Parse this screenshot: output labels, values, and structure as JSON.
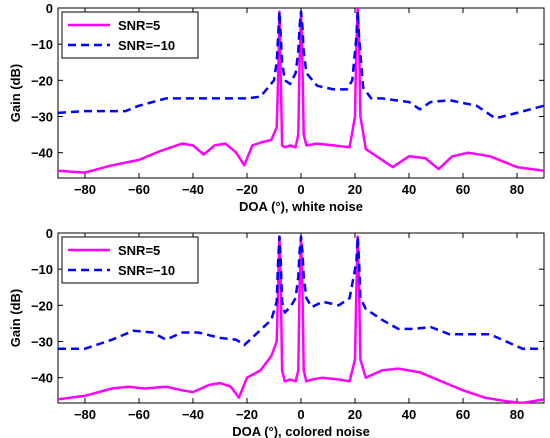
{
  "chart_data": [
    {
      "type": "line",
      "xlabel": "DOA (°), white noise",
      "ylabel": "Gain (dB)",
      "xlim": [
        -90,
        90
      ],
      "ylim": [
        -47,
        0
      ],
      "xticks": [
        -80,
        -60,
        -40,
        -20,
        0,
        20,
        40,
        60,
        80
      ],
      "yticks": [
        0,
        -10,
        -20,
        -30,
        -40
      ],
      "legend_position": "top-left",
      "series": [
        {
          "name": "SNR=5",
          "color": "#ff00ff",
          "style": "solid",
          "x": [
            -90,
            -80,
            -70,
            -60,
            -52,
            -44,
            -40,
            -36,
            -32,
            -28,
            -24,
            -21,
            -18,
            -14,
            -11,
            -9,
            -8.5,
            -8,
            -7.5,
            -7,
            -6,
            -4,
            -2,
            -1,
            -0.5,
            0,
            0.5,
            1,
            2,
            6,
            12,
            18,
            20,
            20.5,
            21,
            21.5,
            22,
            24,
            28,
            34,
            40,
            46,
            51,
            56,
            62,
            70,
            80,
            90
          ],
          "y": [
            -45,
            -45.5,
            -43.5,
            -42,
            -39.5,
            -37.5,
            -38,
            -40.5,
            -38,
            -37.5,
            -40,
            -43.5,
            -38,
            -37,
            -36.5,
            -33,
            -20,
            -1,
            -20,
            -38,
            -38.5,
            -38,
            -38.5,
            -35,
            -15,
            -1,
            -15,
            -35,
            -38,
            -37.5,
            -38,
            -38.5,
            -30,
            -10,
            0,
            -10,
            -30,
            -39,
            -41,
            -44,
            -41,
            -41.5,
            -44.5,
            -41,
            -40,
            -41,
            -44,
            -45
          ]
        },
        {
          "name": "SNR=−10",
          "color": "#0000ff",
          "style": "dashed",
          "x": [
            -90,
            -80,
            -70,
            -65,
            -60,
            -50,
            -40,
            -30,
            -20,
            -15,
            -10,
            -9,
            -8.5,
            -8,
            -7.5,
            -7,
            -6,
            -4,
            -2,
            -1,
            -0.5,
            0,
            0.5,
            1,
            2,
            6,
            12,
            17,
            19,
            20.5,
            21,
            21.5,
            23,
            26,
            30,
            35,
            40,
            44,
            48,
            55,
            65,
            72,
            80,
            90
          ],
          "y": [
            -29,
            -28.5,
            -28.5,
            -28.5,
            -27,
            -25,
            -25,
            -25,
            -25,
            -24.5,
            -20,
            -15,
            -8,
            -1,
            -8,
            -15,
            -20,
            -21,
            -18,
            -12,
            -5,
            -1,
            -5,
            -12,
            -18,
            -21.5,
            -22.5,
            -22.5,
            -20,
            -8,
            -1,
            -8,
            -22,
            -25,
            -25,
            -25.5,
            -26,
            -28,
            -26,
            -25.5,
            -27,
            -30.5,
            -29,
            -27
          ]
        }
      ]
    },
    {
      "type": "line",
      "xlabel": "DOA (°), colored noise",
      "ylabel": "Gain (dB)",
      "xlim": [
        -90,
        90
      ],
      "ylim": [
        -47,
        0
      ],
      "xticks": [
        -80,
        -60,
        -40,
        -20,
        0,
        20,
        40,
        60,
        80
      ],
      "yticks": [
        0,
        -10,
        -20,
        -30,
        -40
      ],
      "legend_position": "top-left",
      "series": [
        {
          "name": "SNR=5",
          "color": "#ff00ff",
          "style": "solid",
          "x": [
            -90,
            -80,
            -70,
            -64,
            -58,
            -50,
            -44,
            -40,
            -34,
            -30,
            -26,
            -23,
            -20,
            -15,
            -11,
            -9,
            -8.5,
            -8,
            -7.5,
            -7,
            -6,
            -4,
            -2,
            -1,
            -0.5,
            0,
            0.5,
            1,
            2,
            4,
            8,
            14,
            18,
            20,
            20.5,
            21,
            21.5,
            22,
            24,
            30,
            36,
            44,
            52,
            60,
            68,
            76,
            82,
            90
          ],
          "y": [
            -46,
            -45,
            -43,
            -42.5,
            -43,
            -42.5,
            -43.5,
            -44,
            -42,
            -41.5,
            -42.5,
            -45.5,
            -40,
            -38,
            -34,
            -30,
            -15,
            -1,
            -15,
            -38,
            -41,
            -40.5,
            -41,
            -38,
            -15,
            -1,
            -15,
            -38,
            -41,
            -40.5,
            -40,
            -40.5,
            -41,
            -35,
            -15,
            -1,
            -15,
            -35,
            -40,
            -38,
            -37.5,
            -38.5,
            -41,
            -43.5,
            -45.5,
            -46.5,
            -47,
            -46
          ]
        },
        {
          "name": "SNR=−10",
          "color": "#0000ff",
          "style": "dashed",
          "x": [
            -90,
            -80,
            -70,
            -62,
            -55,
            -50,
            -44,
            -38,
            -30,
            -24,
            -21,
            -16,
            -11,
            -9,
            -8.5,
            -8,
            -7.5,
            -7,
            -6,
            -4,
            -2,
            -1,
            -0.5,
            0,
            0.5,
            1,
            2,
            4,
            8,
            14,
            18,
            20.5,
            21,
            21.5,
            22,
            24,
            30,
            36,
            42,
            48,
            55,
            62,
            70,
            76,
            82,
            90
          ],
          "y": [
            -32,
            -32,
            -29.5,
            -27,
            -27.5,
            -29.5,
            -27.5,
            -27.5,
            -29,
            -29.5,
            -31,
            -27.5,
            -24,
            -19,
            -8,
            -1,
            -8,
            -19,
            -22,
            -20.5,
            -18,
            -12,
            -5,
            -1,
            -5,
            -12,
            -18,
            -20.5,
            -19,
            -20,
            -18,
            -8,
            -1,
            -8,
            -18,
            -21,
            -24,
            -26.5,
            -26.5,
            -26,
            -28,
            -28,
            -28,
            -30,
            -32,
            -32
          ]
        }
      ]
    }
  ]
}
